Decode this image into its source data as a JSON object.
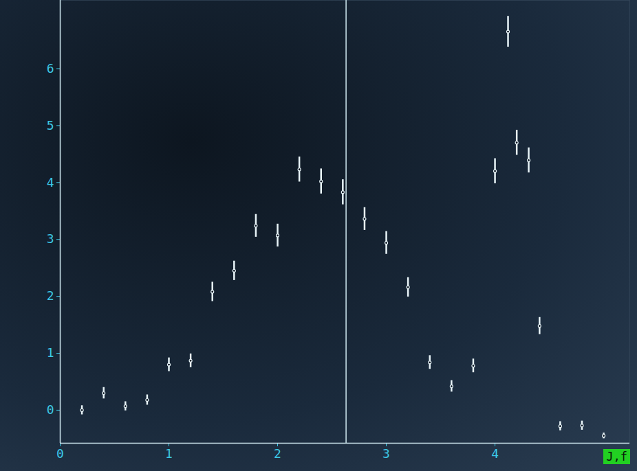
{
  "chart_data": {
    "type": "scatter",
    "xlabel": "J,f",
    "x": [
      0.2,
      0.4,
      0.6,
      0.8,
      1.0,
      1.2,
      1.4,
      1.6,
      1.8,
      2.0,
      2.2,
      2.4,
      2.6,
      2.8,
      3.0,
      3.2,
      3.4,
      3.6,
      3.8,
      4.0,
      4.12,
      4.2,
      4.31,
      4.41,
      4.6,
      4.8,
      5.0
    ],
    "values": [
      0.0,
      0.3,
      0.07,
      0.18,
      0.8,
      0.87,
      2.08,
      2.45,
      3.24,
      3.07,
      4.23,
      4.02,
      3.83,
      3.36,
      2.94,
      2.16,
      0.84,
      0.42,
      0.78,
      4.2,
      6.65,
      4.7,
      4.39,
      1.48,
      -0.28,
      -0.27,
      -0.45
    ],
    "errors": [
      0.08,
      0.1,
      0.08,
      0.09,
      0.12,
      0.12,
      0.17,
      0.17,
      0.2,
      0.2,
      0.22,
      0.22,
      0.22,
      0.2,
      0.2,
      0.17,
      0.12,
      0.1,
      0.12,
      0.22,
      0.27,
      0.22,
      0.22,
      0.15,
      0.08,
      0.08,
      0.05
    ],
    "color": "#e8f4f8",
    "vline": 2.63,
    "xlim": [
      0,
      5.24
    ],
    "xticks": [
      0,
      1,
      2,
      3,
      4
    ],
    "ylim": [
      -0.58,
      7.2
    ],
    "yticks": [
      0,
      1,
      2,
      3,
      4,
      5,
      6
    ],
    "grid": false
  }
}
